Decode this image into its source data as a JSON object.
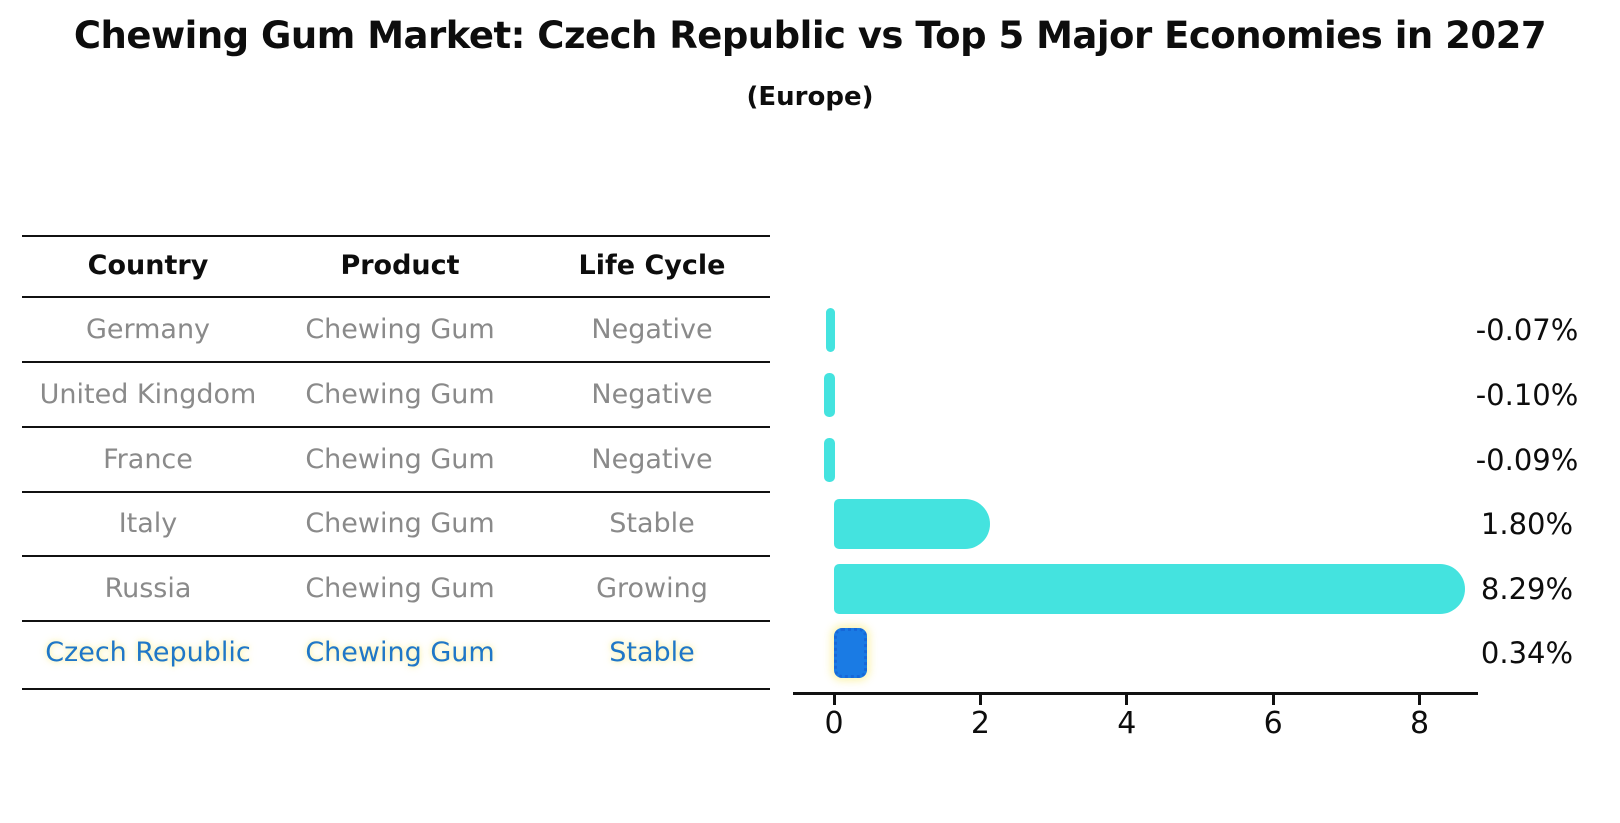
{
  "title": "Chewing Gum Market: Czech Republic vs Top 5 Major Economies in 2027",
  "subtitle": "(Europe)",
  "table": {
    "headers": [
      "Country",
      "Product",
      "Life Cycle"
    ],
    "rows": [
      {
        "country": "Germany",
        "product": "Chewing Gum",
        "life_cycle": "Negative",
        "highlighted": false
      },
      {
        "country": "United Kingdom",
        "product": "Chewing Gum",
        "life_cycle": "Negative",
        "highlighted": false
      },
      {
        "country": "France",
        "product": "Chewing Gum",
        "life_cycle": "Negative",
        "highlighted": false
      },
      {
        "country": "Italy",
        "product": "Chewing Gum",
        "life_cycle": "Stable",
        "highlighted": false
      },
      {
        "country": "Russia",
        "product": "Chewing Gum",
        "life_cycle": "Growing",
        "highlighted": false
      },
      {
        "country": "Czech Republic",
        "product": "Chewing Gum",
        "life_cycle": "Stable",
        "highlighted": true
      }
    ]
  },
  "chart_data": {
    "type": "bar",
    "orientation": "horizontal",
    "categories": [
      "Germany",
      "United Kingdom",
      "France",
      "Italy",
      "Russia",
      "Czech Republic"
    ],
    "values": [
      -0.07,
      -0.1,
      -0.09,
      1.8,
      8.29,
      0.34
    ],
    "value_labels": [
      "-0.07%",
      "-0.10%",
      "-0.09%",
      "1.80%",
      "8.29%",
      "0.34%"
    ],
    "xticks": [
      "0",
      "2",
      "4",
      "6",
      "8"
    ],
    "xlim": [
      -0.56,
      8.8
    ],
    "grid": false,
    "legend": "none",
    "bar_color": "#44E3DF",
    "highlight_bar_color": "#1A7BE4",
    "highlight_text_color": "#1F77C8",
    "highlight_glow_color": "#FCF3AA",
    "title": "Chewing Gum Market: Czech Republic vs Top 5 Major Economies in 2027",
    "subtitle": "(Europe)"
  }
}
